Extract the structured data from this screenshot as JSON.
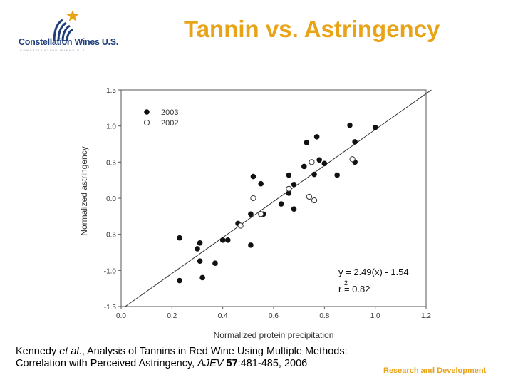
{
  "header": {
    "logo_text": "Constellation Wines U.S.",
    "logo_tagline": "CONSTELLATION WINES U.S.",
    "title": "Tannin vs. Astringency",
    "accent_color": "#e8a317",
    "brand_color": "#1f3f7a"
  },
  "chart_data": {
    "type": "scatter",
    "xlabel": "Normalized protein precipitation",
    "ylabel": "Normalized astringency",
    "xlim": [
      0.0,
      1.2
    ],
    "ylim": [
      -1.5,
      1.5
    ],
    "x_ticks": [
      "0.0",
      "0.2",
      "0.4",
      "0.6",
      "0.8",
      "1.0",
      "1.2"
    ],
    "y_ticks": [
      "-1.5",
      "-1.0",
      "-0.5",
      "0.0",
      "0.5",
      "1.0",
      "1.5"
    ],
    "legend": [
      {
        "name": "2003",
        "marker": "filled"
      },
      {
        "name": "2002",
        "marker": "open"
      }
    ],
    "legend_position": "top-left",
    "fit_line": {
      "slope": 2.49,
      "intercept": -1.54
    },
    "equation": "y = 2.49(x) - 1.54",
    "r2": "r  = 0.82",
    "series": [
      {
        "name": "2003",
        "marker": "filled",
        "points": [
          [
            0.23,
            -0.55
          ],
          [
            0.23,
            -1.14
          ],
          [
            0.3,
            -0.7
          ],
          [
            0.31,
            -0.62
          ],
          [
            0.31,
            -0.87
          ],
          [
            0.32,
            -1.1
          ],
          [
            0.37,
            -0.9
          ],
          [
            0.4,
            -0.58
          ],
          [
            0.42,
            -0.58
          ],
          [
            0.46,
            -0.35
          ],
          [
            0.51,
            -0.22
          ],
          [
            0.51,
            -0.65
          ],
          [
            0.52,
            0.3
          ],
          [
            0.55,
            0.2
          ],
          [
            0.56,
            -0.22
          ],
          [
            0.63,
            -0.08
          ],
          [
            0.66,
            0.32
          ],
          [
            0.66,
            0.07
          ],
          [
            0.68,
            -0.15
          ],
          [
            0.68,
            0.19
          ],
          [
            0.72,
            0.44
          ],
          [
            0.73,
            0.77
          ],
          [
            0.76,
            0.33
          ],
          [
            0.77,
            0.85
          ],
          [
            0.78,
            0.53
          ],
          [
            0.8,
            0.48
          ],
          [
            0.85,
            0.32
          ],
          [
            0.9,
            1.01
          ],
          [
            0.92,
            0.78
          ],
          [
            0.92,
            0.5
          ],
          [
            1.0,
            0.98
          ]
        ]
      },
      {
        "name": "2002",
        "marker": "open",
        "points": [
          [
            0.47,
            -0.38
          ],
          [
            0.52,
            0.0
          ],
          [
            0.55,
            -0.22
          ],
          [
            0.66,
            0.13
          ],
          [
            0.74,
            0.02
          ],
          [
            0.75,
            0.5
          ],
          [
            0.76,
            -0.03
          ],
          [
            0.91,
            0.54
          ]
        ]
      }
    ]
  },
  "footer": {
    "citation_line1_pre": "Kennedy ",
    "citation_line1_italic": "et al",
    "citation_line1_post": "., Analysis of Tannins in Red Wine Using Multiple Methods:",
    "citation_line2_pre": "Correlation with Perceived Astringency, ",
    "citation_line2_journal": "AJEV",
    "citation_line2_volume": " 57",
    "citation_line2_post": ":481-485, 2006",
    "research_label": "Research and Development"
  }
}
